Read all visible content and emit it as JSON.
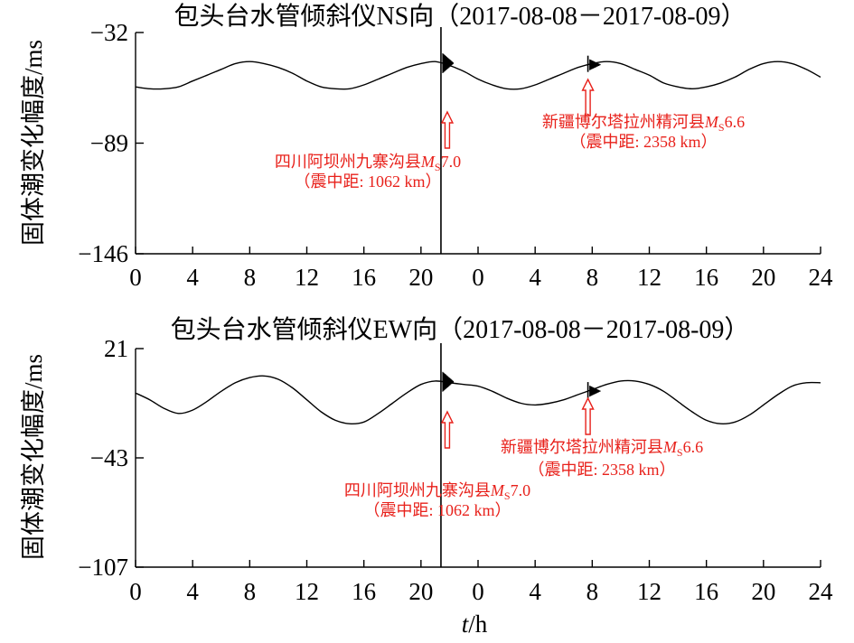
{
  "chart_data": [
    {
      "type": "line",
      "title": "包头台水管倾斜仪NS向（2017-08-08－2017-08-09）",
      "ylabel": "固体潮变化幅度/ms",
      "xlabel": "",
      "ylim": [
        -146,
        -32
      ],
      "yticks": [
        "-32",
        "-89",
        "-146"
      ],
      "xticks": [
        "0",
        "4",
        "8",
        "12",
        "16",
        "20",
        "0",
        "4",
        "8",
        "12",
        "16",
        "20",
        "24"
      ],
      "xlim": [
        0,
        48
      ],
      "grid": false,
      "series": [
        {
          "x": [
            0,
            1,
            2,
            3,
            4,
            5,
            6,
            7,
            8,
            9,
            10,
            11,
            12,
            13,
            14,
            15,
            16,
            17,
            18,
            19,
            20,
            21,
            22,
            23,
            24,
            25,
            26,
            27,
            28,
            29,
            30,
            31,
            32,
            33,
            34,
            35,
            36,
            37,
            38,
            39,
            40,
            41,
            42,
            43,
            44,
            45,
            46,
            47,
            48
          ],
          "values": [
            -60,
            -61,
            -61,
            -60,
            -57,
            -54,
            -51,
            -48,
            -47,
            -48,
            -50,
            -53,
            -57,
            -60,
            -61,
            -61,
            -59,
            -56,
            -53,
            -50,
            -48,
            -47,
            -49,
            -52,
            -56,
            -59,
            -61,
            -61,
            -59,
            -56,
            -53,
            -50,
            -48,
            -47,
            -48,
            -51,
            -54,
            -58,
            -60,
            -61,
            -60,
            -58,
            -55,
            -51,
            -48,
            -47,
            -48,
            -51,
            -55
          ]
        }
      ],
      "events": [
        {
          "time": 21.4,
          "label": "四川阿坝州九寨沟县",
          "magnitude_symbol": "M",
          "magnitude_sub": "S",
          "magnitude_value": "7.0",
          "distance": "（震中距: 1062 km）",
          "color": "#e8211b"
        },
        {
          "time": 31.7,
          "label": "新疆博尔塔拉州精河县",
          "magnitude_symbol": "M",
          "magnitude_sub": "S",
          "magnitude_value": "6.6",
          "distance": "（震中距: 2358 km）",
          "color": "#e8211b"
        }
      ]
    },
    {
      "type": "line",
      "title": "包头台水管倾斜仪EW向（2017-08-08－2017-08-09）",
      "ylabel": "固体潮变化幅度/ms",
      "xlabel": "t/h",
      "ylim": [
        -107,
        21
      ],
      "yticks": [
        "21",
        "-43",
        "-107"
      ],
      "xticks": [
        "0",
        "4",
        "8",
        "12",
        "16",
        "20",
        "0",
        "4",
        "8",
        "12",
        "16",
        "20",
        "24"
      ],
      "xlim": [
        0,
        48
      ],
      "grid": false,
      "series": [
        {
          "x": [
            0,
            1,
            2,
            3,
            4,
            5,
            6,
            7,
            8,
            9,
            10,
            11,
            12,
            13,
            14,
            15,
            16,
            17,
            18,
            19,
            20,
            21,
            22,
            23,
            24,
            25,
            26,
            27,
            28,
            29,
            30,
            31,
            32,
            33,
            34,
            35,
            36,
            37,
            38,
            39,
            40,
            41,
            42,
            43,
            44,
            45,
            46,
            47,
            48
          ],
          "values": [
            -5,
            -9,
            -14,
            -17,
            -15,
            -10,
            -4,
            1,
            4,
            5,
            3,
            -2,
            -9,
            -16,
            -21,
            -23,
            -22,
            -17,
            -11,
            -5,
            0,
            2,
            1,
            0,
            -1,
            -4,
            -8,
            -11,
            -12,
            -11,
            -9,
            -6,
            -3,
            0,
            2,
            2,
            0,
            -4,
            -10,
            -16,
            -21,
            -23,
            -22,
            -18,
            -12,
            -6,
            -1,
            1,
            1
          ]
        }
      ],
      "events": [
        {
          "time": 21.4,
          "label": "四川阿坝州九寨沟县",
          "magnitude_symbol": "M",
          "magnitude_sub": "S",
          "magnitude_value": "7.0",
          "distance": "（震中距: 1062 km）",
          "color": "#e8211b"
        },
        {
          "time": 31.7,
          "label": "新疆博尔塔拉州精河县",
          "magnitude_symbol": "M",
          "magnitude_sub": "S",
          "magnitude_value": "6.6",
          "distance": "（震中距: 2358 km）",
          "color": "#e8211b"
        }
      ]
    }
  ]
}
